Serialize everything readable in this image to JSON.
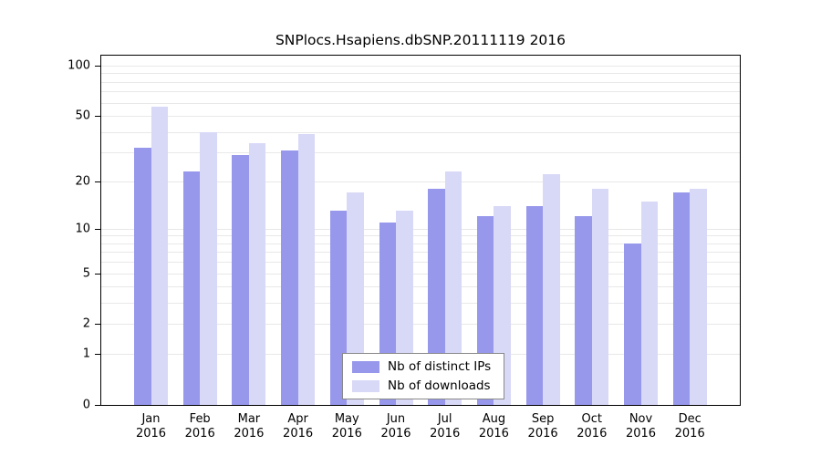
{
  "chart_data": {
    "type": "bar",
    "title": "SNPlocs.Hsapiens.dbSNP.20111119 2016",
    "scale": "log1p",
    "year": "2016",
    "categories": [
      "Jan",
      "Feb",
      "Mar",
      "Apr",
      "May",
      "Jun",
      "Jul",
      "Aug",
      "Sep",
      "Oct",
      "Nov",
      "Dec"
    ],
    "series": [
      {
        "name": "Nb of distinct IPs",
        "color": "#9797ec",
        "values": [
          32,
          23,
          29,
          31,
          13,
          11,
          18,
          12,
          14,
          12,
          8,
          17
        ]
      },
      {
        "name": "Nb of downloads",
        "color": "#d8d8f7",
        "values": [
          57,
          40,
          34,
          39,
          17,
          13,
          23,
          14,
          22,
          18,
          15,
          18
        ]
      }
    ],
    "y_ticks": [
      0,
      1,
      2,
      5,
      10,
      20,
      50,
      100
    ],
    "gridlines": [
      1,
      2,
      3,
      4,
      5,
      6,
      7,
      8,
      9,
      10,
      20,
      30,
      40,
      50,
      60,
      70,
      80,
      90,
      100
    ],
    "ylim": [
      0,
      100
    ],
    "legend_position": "bottom-center",
    "grid": "on",
    "xlabel": "",
    "ylabel": ""
  }
}
